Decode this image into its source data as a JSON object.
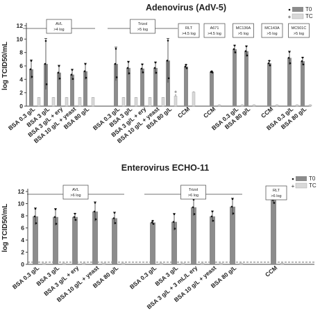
{
  "colors": {
    "t0": "#8c8c8c",
    "tc": "#d9d9d9",
    "axis": "#444444",
    "error": "#333333",
    "ref_line": "#555555"
  },
  "chart_data": [
    {
      "type": "bar",
      "title": "Adenovirus (AdV-5)",
      "ylabel": "log TCID50/mL",
      "ylim": [
        0,
        12
      ],
      "yticks": [
        0,
        2,
        4,
        6,
        8,
        10,
        12
      ],
      "grid": false,
      "legend": {
        "position": "top-right",
        "entries": [
          "T0",
          "TC"
        ]
      },
      "categories": [
        "BSA 0.3 g/L",
        "BSA 3 g/L",
        "BSA 3 g/L + ery",
        "BSA 10 g/L + yeast",
        "BSA 80 g/L",
        "BSA 0.3 g/L",
        "BSA 3 g/L",
        "BSA 3 g/L + ery",
        "BSA 10 g/L + yeast",
        "BSA 80 g/L",
        "CCM",
        "CCM",
        "BSA 0.3 g/L",
        "BSA 80 g/L",
        "CCM",
        "BSA 0.3 g/L",
        "BSA 80 g/L"
      ],
      "series": [
        {
          "name": "T0",
          "values": [
            5.5,
            6.3,
            5.0,
            4.7,
            5.2,
            6.3,
            5.7,
            5.6,
            5.7,
            6.8,
            5.9,
            5.1,
            8.5,
            8.2,
            6.4,
            7.2,
            6.7
          ],
          "errors": [
            1.4,
            3.8,
            1.1,
            0.8,
            1.2,
            2.5,
            1.0,
            0.7,
            0.9,
            3.3,
            0.3,
            0.1,
            0.6,
            0.8,
            0.4,
            1.0,
            0.6
          ]
        },
        {
          "name": "TC",
          "values": [
            1.3,
            1.3,
            1.3,
            1.3,
            1.3,
            1.3,
            1.3,
            1.3,
            1.3,
            1.5,
            2.1,
            0.2,
            0.2,
            0.2,
            0.2,
            0.2,
            0.2
          ],
          "errors": [
            0.05,
            0.05,
            0.05,
            0.05,
            0.05,
            0.05,
            0.05,
            0.05,
            0.05,
            0.3,
            0.1,
            0.05,
            0.05,
            0.05,
            0.05,
            0.05,
            0.05
          ]
        }
      ],
      "brackets": [
        {
          "label": "AVL",
          "sub": ">4 log",
          "from": 0,
          "to": 4
        },
        {
          "label": "Trizol",
          "sub": ">5 log",
          "from": 5,
          "to": 9
        }
      ],
      "boxes": [
        {
          "label": "RLT",
          "sub": ">4.5 log",
          "index": 10
        },
        {
          "label": "A671",
          "sub": ">4.5 log",
          "index": 11
        },
        {
          "label": "MC136A",
          "sub": ">5 log",
          "from": 12,
          "to": 13
        },
        {
          "label": "MC143A",
          "sub": ">5 log",
          "index": 14
        },
        {
          "label": "MC501C",
          "sub": ">5 log",
          "from": 15,
          "to": 16
        }
      ]
    },
    {
      "type": "bar",
      "title": "Enterovirus ECHO-11",
      "ylabel": "log TCID50/mL",
      "ylim": [
        0,
        12
      ],
      "yticks": [
        0,
        2,
        4,
        6,
        8,
        10,
        12
      ],
      "grid": false,
      "legend": {
        "position": "top-right",
        "entries": [
          "T0",
          "TC"
        ]
      },
      "categories": [
        "BSA 0.3 g/L",
        "BSA 3 g/L",
        "BSA 3 g/L + ery",
        "BSA 10 g/L + yeast",
        "BSA 80 g/L",
        "BSA 0.3 g/L",
        "BSA 3 g/L",
        "BSA 3 g/L + 3 mL/L ery",
        "BSA 10 g/L + yeast",
        "BSA 80 g/L",
        "CCM"
      ],
      "series": [
        {
          "name": "T0",
          "values": [
            7.9,
            7.8,
            7.8,
            8.7,
            7.6,
            6.9,
            7.0,
            9.4,
            7.9,
            9.5,
            10.6
          ],
          "errors": [
            1.4,
            1.4,
            0.6,
            1.6,
            1.0,
            0.3,
            1.4,
            1.4,
            0.9,
            1.4,
            0.6
          ]
        },
        {
          "name": "TC",
          "values": [
            0.2,
            0.2,
            0.2,
            0.2,
            0.2,
            0.2,
            0.2,
            0.2,
            0.2,
            0.2,
            0.2
          ],
          "errors": [
            0.05,
            0.05,
            0.05,
            0.05,
            0.05,
            0.05,
            0.05,
            0.05,
            0.05,
            0.05,
            0.05
          ]
        }
      ],
      "brackets": [
        {
          "label": "AVL",
          "sub": ">6 log",
          "from": 0,
          "to": 4
        },
        {
          "label": "Trizol",
          "sub": ">6 log",
          "from": 5,
          "to": 9
        }
      ],
      "boxes": [
        {
          "label": "RLT",
          "sub": ">6 log",
          "index": 10
        }
      ]
    }
  ]
}
